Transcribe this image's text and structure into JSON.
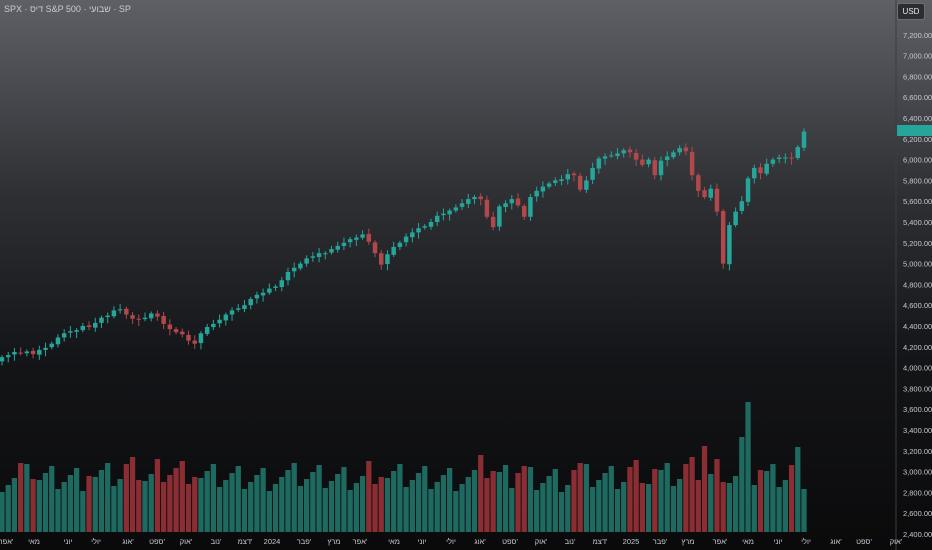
{
  "header": {
    "title": "SPX · דיס S&P 500 · שבועי · SP"
  },
  "currency_button": {
    "label": "USD"
  },
  "colors": {
    "up": "#26a69a",
    "down": "#b0484c",
    "vol_up": "#1f6a60",
    "vol_down": "#8a2e33",
    "last_price": "#26a69a"
  },
  "chart_data": {
    "type": "candlestick",
    "timeframe": "weekly",
    "ylim": [
      2400,
      7400
    ],
    "y_ticks": [
      "7,200.00",
      "7,000.00",
      "6,800.00",
      "6,600.00",
      "6,400.00",
      "6,200.00",
      "6,000.00",
      "5,800.00",
      "5,600.00",
      "5,400.00",
      "5,200.00",
      "5,000.00",
      "4,800.00",
      "4,600.00",
      "4,400.00",
      "4,200.00",
      "4,000.00",
      "3,800.00",
      "3,600.00",
      "3,400.00",
      "3,200.00",
      "3,000.00",
      "2,800.00",
      "2,600.00",
      "2,400.00"
    ],
    "x_ticks": [
      "אפר'",
      "מאי",
      "יוני",
      "יולי",
      "אוג'",
      "ספט'",
      "אוק'",
      "נוב'",
      "דצמ'",
      "2024",
      "פבר'",
      "מרץ",
      "אפר'",
      "מאי",
      "יוני",
      "יולי",
      "אוג'",
      "ספט'",
      "אוק'",
      "נוב'",
      "דצמ'",
      "2025",
      "פבר'",
      "מרץ",
      "אפר'",
      "מאי",
      "יוני",
      "יולי",
      "אוג'",
      "ספט'",
      "אוק'"
    ],
    "close": [
      4100,
      4120,
      4150,
      4138,
      4155,
      4130,
      4170,
      4190,
      4230,
      4290,
      4330,
      4350,
      4360,
      4400,
      4390,
      4430,
      4480,
      4500,
      4550,
      4560,
      4510,
      4470,
      4460,
      4480,
      4520,
      4490,
      4420,
      4370,
      4340,
      4320,
      4260,
      4230,
      4330,
      4390,
      4420,
      4460,
      4510,
      4550,
      4570,
      4600,
      4660,
      4700,
      4720,
      4760,
      4780,
      4840,
      4920,
      4960,
      5000,
      5050,
      5070,
      5100,
      5100,
      5140,
      5170,
      5200,
      5235,
      5250,
      5280,
      5210,
      5100,
      4990,
      5090,
      5160,
      5200,
      5260,
      5300,
      5340,
      5360,
      5400,
      5460,
      5480,
      5510,
      5540,
      5580,
      5620,
      5640,
      5620,
      5450,
      5350,
      5550,
      5580,
      5620,
      5560,
      5450,
      5640,
      5700,
      5740,
      5770,
      5800,
      5810,
      5860,
      5850,
      5710,
      5800,
      5920,
      6010,
      6030,
      6040,
      6060,
      6090,
      6070,
      6000,
      5950,
      6000,
      5850,
      5990,
      6030,
      6070,
      6110,
      6080,
      5850,
      5700,
      5640,
      5720,
      5500,
      5000,
      5370,
      5500,
      5600,
      5820,
      5920,
      5870,
      5960,
      6000,
      6020,
      6020,
      6010,
      6120,
      6270
    ],
    "note": "weekly closes approx from 2023 to 2025; opens derived from previous close"
  }
}
